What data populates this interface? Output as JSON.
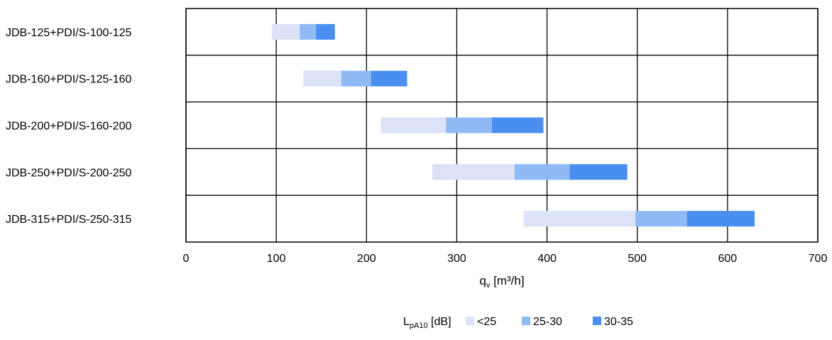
{
  "chart_data": {
    "type": "bar",
    "orientation": "horizontal",
    "stacked": true,
    "categories": [
      "JDB-125+PDI/S-100-125",
      "JDB-160+PDI/S-125-160",
      "JDB-200+PDI/S-160-200",
      "JDB-250+PDI/S-200-250",
      "JDB-315+PDI/S-250-315"
    ],
    "ranges": [
      {
        "category": "JDB-125+PDI/S-100-125",
        "lt25": [
          95,
          126
        ],
        "b25_30": [
          126,
          144
        ],
        "b30_35": [
          144,
          165
        ]
      },
      {
        "category": "JDB-160+PDI/S-125-160",
        "lt25": [
          130,
          172
        ],
        "b25_30": [
          172,
          205
        ],
        "b30_35": [
          205,
          245
        ]
      },
      {
        "category": "JDB-200+PDI/S-160-200",
        "lt25": [
          216,
          288
        ],
        "b25_30": [
          288,
          339
        ],
        "b30_35": [
          339,
          396
        ]
      },
      {
        "category": "JDB-250+PDI/S-200-250",
        "lt25": [
          273,
          364
        ],
        "b25_30": [
          364,
          425
        ],
        "b30_35": [
          425,
          489
        ]
      },
      {
        "category": "JDB-315+PDI/S-250-315",
        "lt25": [
          374,
          498
        ],
        "b25_30": [
          498,
          555
        ],
        "b30_35": [
          555,
          630
        ]
      }
    ],
    "xlim": [
      0,
      700
    ],
    "xticks": [
      0,
      100,
      200,
      300,
      400,
      500,
      600,
      700
    ],
    "xlabel": {
      "main": "q",
      "sub": "v",
      "rest": " [m³/h]"
    },
    "grid": true,
    "legend": {
      "placement": "bottom",
      "title": {
        "main": "L",
        "sub": "pA10",
        "rest": " [dB]"
      },
      "entries": [
        {
          "key": "lt25",
          "label": "<25",
          "color": "#dce3f8"
        },
        {
          "key": "b25_30",
          "label": "25-30",
          "color": "#8fbaf5"
        },
        {
          "key": "b30_35",
          "label": "30-35",
          "color": "#4a8ff0"
        }
      ]
    }
  }
}
